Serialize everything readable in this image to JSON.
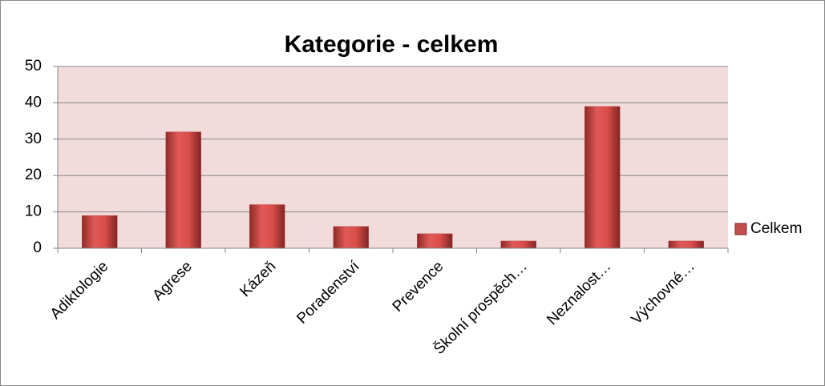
{
  "chart_data": {
    "type": "bar",
    "title": "Kategorie - celkem",
    "categories": [
      "Adiktologie",
      "Agrese",
      "Kázeň",
      "Poradenství",
      "Prevence",
      "Školní prospěch…",
      "Neznalost…",
      "Výchovné…"
    ],
    "series": [
      {
        "name": "Celkem",
        "color": "#c0504d",
        "values": [
          9,
          32,
          12,
          6,
          4,
          2,
          39,
          2
        ]
      }
    ],
    "ylim": [
      0,
      50
    ],
    "yticks": [
      0,
      10,
      20,
      30,
      40,
      50
    ],
    "grid": true,
    "legend": "right"
  }
}
